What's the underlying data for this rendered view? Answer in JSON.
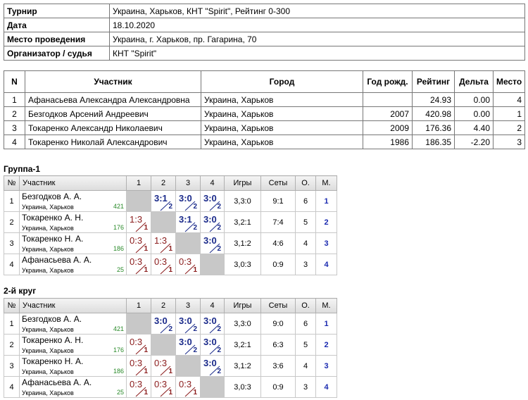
{
  "info": {
    "rows": [
      [
        "Турнир",
        "Украина, Харьков, КНТ \"Spirit\", Рейтинг 0-300"
      ],
      [
        "Дата",
        "18.10.2020"
      ],
      [
        "Место проведения",
        "Украина, г. Харьков, пр. Гагарина, 70"
      ],
      [
        "Организатор / судья",
        "КНТ \"Spirit\""
      ]
    ]
  },
  "participants": {
    "header": [
      "N",
      "Участник",
      "Город",
      "Год рожд.",
      "Рейтинг",
      "Дельта",
      "Место"
    ],
    "rows": [
      [
        1,
        "Афанасьева Александра Александровна",
        "Украина, Харьков",
        null,
        "24.93",
        "0.00",
        4
      ],
      [
        2,
        "Безгодков Арсений Андреевич",
        "Украина, Харьков",
        2007,
        "420.98",
        "0.00",
        1
      ],
      [
        3,
        "Токаренко Александр Николаевич",
        "Украина, Харьков",
        2009,
        "176.36",
        "4.40",
        2
      ],
      [
        4,
        "Токаренко Николай Александрович",
        "Украина, Харьков",
        1986,
        "186.35",
        "-2.20",
        3
      ]
    ]
  },
  "groups": [
    {
      "title": "Группа-1",
      "header": [
        "№",
        "Участник",
        "1",
        "2",
        "3",
        "4",
        "Игры",
        "Сеты",
        "О.",
        "М."
      ],
      "rows": [
        {
          "n": 1,
          "name": "Безгодков А. А.",
          "city": "Украина, Харьков",
          "rating": 421,
          "results": [
            null,
            {
              "score": "3:1",
              "points": 2
            },
            {
              "score": "3:0",
              "points": 2
            },
            {
              "score": "3:0",
              "points": 2
            }
          ],
          "games": "3,3:0",
          "sets": "9:1",
          "points": 6,
          "place": 1
        },
        {
          "n": 2,
          "name": "Токаренко А. Н.",
          "city": "Украина, Харьков",
          "rating": 176,
          "results": [
            {
              "score": "1:3",
              "points": 1
            },
            null,
            {
              "score": "3:1",
              "points": 2
            },
            {
              "score": "3:0",
              "points": 2
            }
          ],
          "games": "3,2:1",
          "sets": "7:4",
          "points": 5,
          "place": 2
        },
        {
          "n": 3,
          "name": "Токаренко Н. А.",
          "city": "Украина, Харьков",
          "rating": 186,
          "results": [
            {
              "score": "0:3",
              "points": 1
            },
            {
              "score": "1:3",
              "points": 1
            },
            null,
            {
              "score": "3:0",
              "points": 2
            }
          ],
          "games": "3,1:2",
          "sets": "4:6",
          "points": 4,
          "place": 3
        },
        {
          "n": 4,
          "name": "Афанасьева А. А.",
          "city": "Украина, Харьков",
          "rating": 25,
          "results": [
            {
              "score": "0:3",
              "points": 1
            },
            {
              "score": "0:3",
              "points": 1
            },
            {
              "score": "0:3",
              "points": 1
            },
            null
          ],
          "games": "3,0:3",
          "sets": "0:9",
          "points": 3,
          "place": 4
        }
      ]
    },
    {
      "title": "2-й круг",
      "header": [
        "№",
        "Участник",
        "1",
        "2",
        "3",
        "4",
        "Игры",
        "Сеты",
        "О.",
        "М."
      ],
      "rows": [
        {
          "n": 1,
          "name": "Безгодков А. А.",
          "city": "Украина, Харьков",
          "rating": 421,
          "results": [
            null,
            {
              "score": "3:0",
              "points": 2
            },
            {
              "score": "3:0",
              "points": 2
            },
            {
              "score": "3:0",
              "points": 2
            }
          ],
          "games": "3,3:0",
          "sets": "9:0",
          "points": 6,
          "place": 1
        },
        {
          "n": 2,
          "name": "Токаренко А. Н.",
          "city": "Украина, Харьков",
          "rating": 176,
          "results": [
            {
              "score": "0:3",
              "points": 1
            },
            null,
            {
              "score": "3:0",
              "points": 2
            },
            {
              "score": "3:0",
              "points": 2
            }
          ],
          "games": "3,2:1",
          "sets": "6:3",
          "points": 5,
          "place": 2
        },
        {
          "n": 3,
          "name": "Токаренко Н. А.",
          "city": "Украина, Харьков",
          "rating": 186,
          "results": [
            {
              "score": "0:3",
              "points": 1
            },
            {
              "score": "0:3",
              "points": 1
            },
            null,
            {
              "score": "3:0",
              "points": 2
            }
          ],
          "games": "3,1:2",
          "sets": "3:6",
          "points": 4,
          "place": 3
        },
        {
          "n": 4,
          "name": "Афанасьева А. А.",
          "city": "Украина, Харьков",
          "rating": 25,
          "results": [
            {
              "score": "0:3",
              "points": 1
            },
            {
              "score": "0:3",
              "points": 1
            },
            {
              "score": "0:3",
              "points": 1
            },
            null
          ],
          "games": "3,0:3",
          "sets": "0:9",
          "points": 3,
          "place": 4
        }
      ]
    }
  ]
}
